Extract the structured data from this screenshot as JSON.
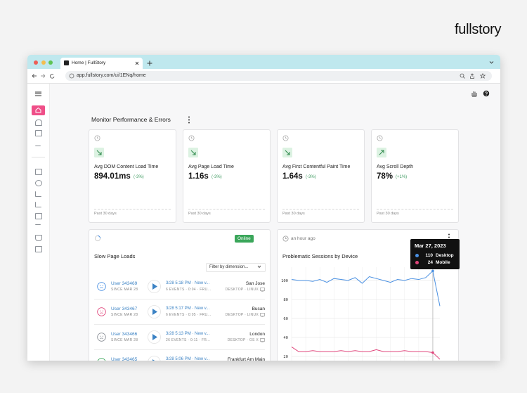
{
  "logo": "fullstory",
  "browser": {
    "tab_title": "Home | FullStory",
    "url": "app.fullstory.com/ui/1ENq/home"
  },
  "section_title": "Monitor Performance & Errors",
  "metrics": [
    {
      "label": "Avg DOM Content Load Time",
      "value": "894.01ms",
      "change": "(-3%)",
      "period": "Past 30 days"
    },
    {
      "label": "Avg Page Load Time",
      "value": "1.16s",
      "change": "(-3%)",
      "period": "Past 30 days"
    },
    {
      "label": "Avg First Contentful Paint Time",
      "value": "1.64s",
      "change": "(-3%)",
      "period": "Past 30 days"
    },
    {
      "label": "Avg Scroll Depth",
      "value": "78%",
      "change": "(+1%)",
      "period": "Past 30 days"
    }
  ],
  "slow_pages": {
    "title": "Slow Page Loads",
    "status": "Online",
    "filter": "Filter by dimension...",
    "rows": [
      {
        "user": "User 343469",
        "since": "SINCE MAR 28",
        "session": "3/28 5:18 PM · New v...",
        "events": "6 EVENTS · 0:04 · FRU...",
        "city": "San Jose",
        "device": "DESKTOP · LINUX"
      },
      {
        "user": "User 343467",
        "since": "SINCE MAR 28",
        "session": "3/28 5:17 PM · New v...",
        "events": "6 EVENTS · 0:05 · FRU...",
        "city": "Busan",
        "device": "DESKTOP · LINUX"
      },
      {
        "user": "User 343466",
        "since": "SINCE MAR 28",
        "session": "3/28 5:13 PM · New v...",
        "events": "26 EVENTS · 0:11 · FR...",
        "city": "London",
        "device": "DESKTOP · OS X"
      },
      {
        "user": "User 343465",
        "since": "SINCE MAR 28",
        "session": "3/28 5:06 PM · New v...",
        "events": "8 EVENTS · 0:03 · FRU...",
        "city": "Frankfurt Am Main",
        "device": "DESKTOP · LINUX"
      }
    ]
  },
  "sessions_card": {
    "time": "an hour ago"
  },
  "chart_data": {
    "type": "line",
    "title": "Problematic Sessions by Device",
    "categories": [
      null,
      null,
      null,
      null,
      null,
      null,
      null,
      null,
      null,
      null,
      null,
      null,
      null,
      null,
      null,
      null,
      null,
      null,
      null,
      null,
      null,
      null
    ],
    "series": [
      {
        "name": "Desktop",
        "color": "#4a90e2",
        "values": [
          101,
          100,
          100,
          99,
          101,
          98,
          102,
          101,
          100,
          103,
          97,
          104,
          102,
          100,
          98,
          101,
          100,
          102,
          101,
          103,
          110,
          73
        ]
      },
      {
        "name": "Mobile",
        "color": "#e0457b",
        "values": [
          30,
          25,
          25,
          26,
          25,
          25,
          25,
          26,
          25,
          26,
          25,
          25,
          27,
          25,
          25,
          25,
          26,
          25,
          25,
          25,
          24,
          17
        ]
      }
    ],
    "ylim": [
      14,
      114
    ],
    "yticks": [
      100,
      80,
      60,
      40,
      20
    ],
    "grid": true,
    "tooltip": {
      "title": "Mar 27, 2023",
      "items": [
        {
          "value": 110,
          "name": "Desktop"
        },
        {
          "value": 24,
          "name": "Mobile"
        }
      ]
    }
  }
}
